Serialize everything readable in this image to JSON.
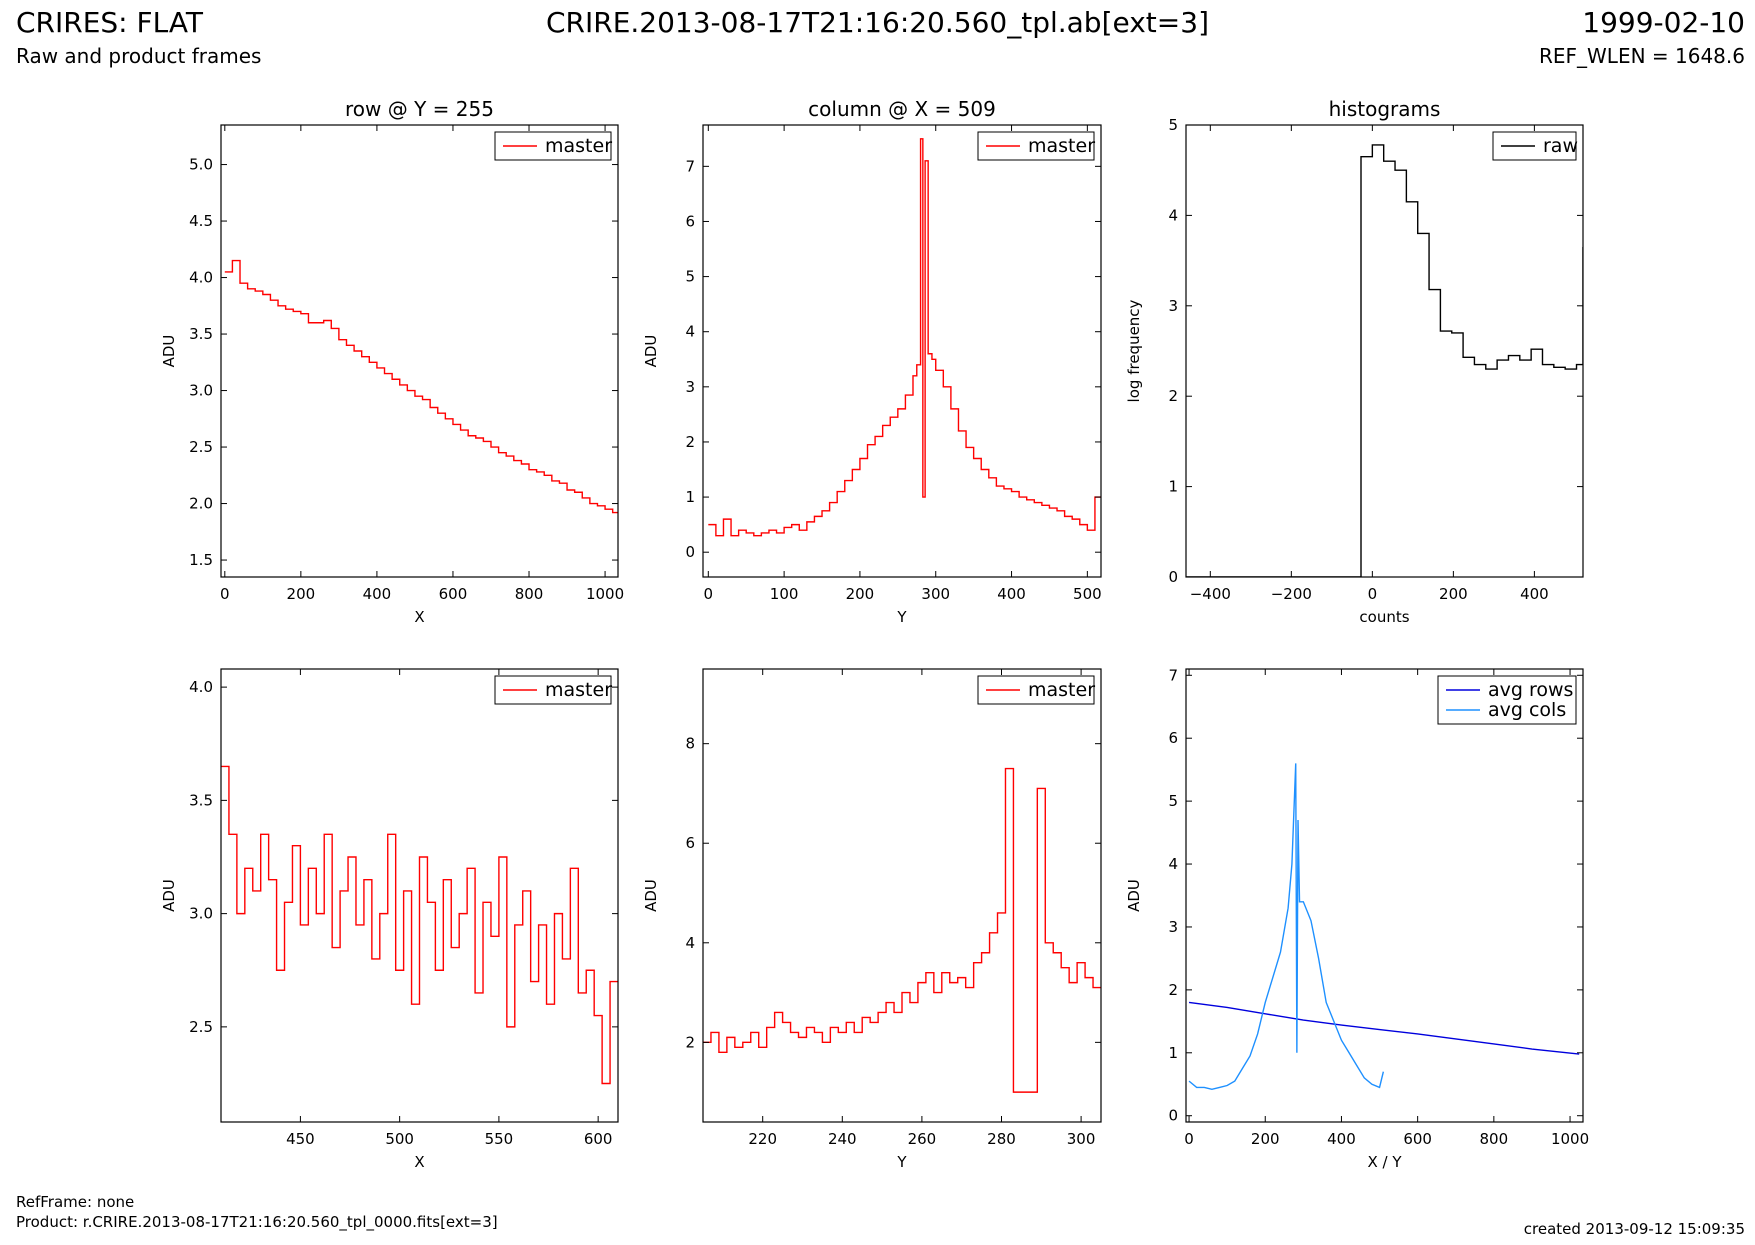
{
  "header": {
    "instrument": "CRIRES: FLAT",
    "subtitle": "Raw and product frames",
    "filename": "CRIRE.2013-08-17T21:16:20.560_tpl.ab[ext=3]",
    "date": "1999-02-10",
    "ref_wlen": "REF_WLEN = 1648.6"
  },
  "footer": {
    "refframe": "RefFrame: none",
    "product": "Product: r.CRIRE.2013-08-17T21:16:20.560_tpl_0000.fits[ext=3]",
    "created": "created 2013-09-12 15:09:35"
  },
  "colors": {
    "master": "#ff0000",
    "raw": "#000000",
    "avg_rows": "#0000dd",
    "avg_cols": "#1e90ff"
  },
  "chart_data": [
    {
      "type": "line",
      "title": "row @ Y = 255",
      "xlabel": "X",
      "ylabel": "ADU",
      "xlim": [
        -10,
        1034
      ],
      "ylim": [
        1.35,
        5.35
      ],
      "xticks": [
        0,
        200,
        400,
        600,
        800,
        1000
      ],
      "yticks": [
        1.5,
        2.0,
        2.5,
        3.0,
        3.5,
        4.0,
        4.5,
        5.0
      ],
      "ytick_labels": [
        "1.5",
        "2.0",
        "2.5",
        "3.0",
        "3.5",
        "4.0",
        "4.5",
        "5.0"
      ],
      "legend": "top-right",
      "series": [
        {
          "name": "master",
          "style": "steps",
          "color": "#ff0000",
          "x": [
            0,
            20,
            40,
            60,
            80,
            100,
            120,
            140,
            160,
            180,
            200,
            220,
            240,
            260,
            280,
            300,
            320,
            340,
            360,
            380,
            400,
            420,
            440,
            460,
            480,
            500,
            520,
            540,
            560,
            580,
            600,
            620,
            640,
            660,
            680,
            700,
            720,
            740,
            760,
            780,
            800,
            820,
            840,
            860,
            880,
            900,
            920,
            940,
            960,
            980,
            1000,
            1020
          ],
          "values": [
            4.05,
            4.15,
            3.95,
            3.9,
            3.88,
            3.85,
            3.8,
            3.75,
            3.72,
            3.7,
            3.68,
            3.6,
            3.6,
            3.62,
            3.55,
            3.45,
            3.4,
            3.35,
            3.3,
            3.25,
            3.2,
            3.15,
            3.1,
            3.05,
            3.0,
            2.95,
            2.92,
            2.85,
            2.8,
            2.75,
            2.7,
            2.65,
            2.6,
            2.58,
            2.55,
            2.5,
            2.45,
            2.42,
            2.38,
            2.35,
            2.3,
            2.28,
            2.25,
            2.2,
            2.18,
            2.12,
            2.1,
            2.05,
            2.0,
            1.98,
            1.95,
            1.92
          ]
        }
      ]
    },
    {
      "type": "line",
      "title": "column @ X = 509",
      "xlabel": "Y",
      "ylabel": "ADU",
      "xlim": [
        -7,
        518
      ],
      "ylim": [
        -0.45,
        7.75
      ],
      "xticks": [
        0,
        100,
        200,
        300,
        400,
        500
      ],
      "yticks": [
        0,
        1,
        2,
        3,
        4,
        5,
        6,
        7
      ],
      "ytick_labels": [
        "0",
        "1",
        "2",
        "3",
        "4",
        "5",
        "6",
        "7"
      ],
      "legend": "top-right",
      "series": [
        {
          "name": "master",
          "style": "steps",
          "color": "#ff0000",
          "x": [
            0,
            10,
            20,
            30,
            40,
            50,
            60,
            70,
            80,
            90,
            100,
            110,
            120,
            130,
            140,
            150,
            160,
            170,
            180,
            190,
            200,
            210,
            220,
            230,
            240,
            250,
            260,
            270,
            275,
            280,
            283,
            286,
            290,
            295,
            300,
            310,
            320,
            330,
            340,
            350,
            360,
            370,
            380,
            390,
            400,
            410,
            420,
            430,
            440,
            450,
            460,
            470,
            480,
            490,
            500,
            510
          ],
          "values": [
            0.5,
            0.3,
            0.6,
            0.3,
            0.4,
            0.35,
            0.3,
            0.35,
            0.4,
            0.35,
            0.45,
            0.5,
            0.4,
            0.55,
            0.65,
            0.75,
            0.9,
            1.1,
            1.3,
            1.5,
            1.7,
            1.95,
            2.1,
            2.3,
            2.45,
            2.6,
            2.85,
            3.2,
            3.4,
            7.5,
            1.0,
            7.1,
            3.6,
            3.5,
            3.3,
            3.0,
            2.6,
            2.2,
            1.9,
            1.7,
            1.5,
            1.35,
            1.2,
            1.15,
            1.1,
            1.0,
            0.95,
            0.9,
            0.85,
            0.8,
            0.75,
            0.65,
            0.6,
            0.5,
            0.4,
            1.0
          ]
        }
      ]
    },
    {
      "type": "line",
      "title": "histograms",
      "xlabel": "counts",
      "ylabel": "log frequency",
      "xlim": [
        -460,
        520
      ],
      "ylim": [
        0,
        5
      ],
      "xticks": [
        -400,
        -200,
        0,
        200,
        400
      ],
      "xtick_labels": [
        "−400",
        "−200",
        "0",
        "200",
        "400"
      ],
      "yticks": [
        0,
        1,
        2,
        3,
        4,
        5
      ],
      "ytick_labels": [
        "0",
        "1",
        "2",
        "3",
        "4",
        "5"
      ],
      "legend": "top-right",
      "series": [
        {
          "name": "raw",
          "style": "steps",
          "color": "#000000",
          "x": [
            -460,
            -28,
            0,
            28,
            56,
            84,
            112,
            140,
            168,
            196,
            224,
            252,
            280,
            308,
            336,
            364,
            392,
            420,
            448,
            476,
            504,
            520
          ],
          "values": [
            0,
            4.65,
            4.78,
            4.6,
            4.5,
            4.15,
            3.8,
            3.18,
            2.72,
            2.7,
            2.43,
            2.35,
            2.3,
            2.4,
            2.45,
            2.4,
            2.52,
            2.35,
            2.32,
            2.3,
            2.35,
            3.65
          ]
        }
      ]
    },
    {
      "type": "line",
      "title": "",
      "xlabel": "X",
      "ylabel": "ADU",
      "xlim": [
        410,
        610
      ],
      "ylim": [
        2.08,
        4.08
      ],
      "xticks": [
        450,
        500,
        550,
        600
      ],
      "yticks": [
        2.5,
        3.0,
        3.5,
        4.0
      ],
      "ytick_labels": [
        "2.5",
        "3.0",
        "3.5",
        "4.0"
      ],
      "legend": "top-right",
      "series": [
        {
          "name": "master",
          "style": "steps",
          "color": "#ff0000",
          "x": [
            410,
            414,
            418,
            422,
            426,
            430,
            434,
            438,
            442,
            446,
            450,
            454,
            458,
            462,
            466,
            470,
            474,
            478,
            482,
            486,
            490,
            494,
            498,
            502,
            506,
            510,
            514,
            518,
            522,
            526,
            530,
            534,
            538,
            542,
            546,
            550,
            554,
            558,
            562,
            566,
            570,
            574,
            578,
            582,
            586,
            590,
            594,
            598,
            602,
            606
          ],
          "values": [
            3.65,
            3.35,
            3.0,
            3.2,
            3.1,
            3.35,
            3.15,
            2.75,
            3.05,
            3.3,
            2.95,
            3.2,
            3.0,
            3.35,
            2.85,
            3.1,
            3.25,
            2.95,
            3.15,
            2.8,
            3.0,
            3.35,
            2.75,
            3.1,
            2.6,
            3.25,
            3.05,
            2.75,
            3.15,
            2.85,
            3.0,
            3.2,
            2.65,
            3.05,
            2.9,
            3.25,
            2.5,
            2.95,
            3.1,
            2.7,
            2.95,
            2.6,
            3.0,
            2.8,
            3.2,
            2.65,
            2.75,
            2.55,
            2.25,
            2.7
          ]
        }
      ]
    },
    {
      "type": "line",
      "title": "",
      "xlabel": "Y",
      "ylabel": "ADU",
      "xlim": [
        205,
        305
      ],
      "ylim": [
        0.4,
        9.5
      ],
      "xticks": [
        220,
        240,
        260,
        280,
        300
      ],
      "yticks": [
        2,
        4,
        6,
        8
      ],
      "ytick_labels": [
        "2",
        "4",
        "6",
        "8"
      ],
      "legend": "top-right",
      "series": [
        {
          "name": "master",
          "style": "steps",
          "color": "#ff0000",
          "x": [
            205,
            207,
            209,
            211,
            213,
            215,
            217,
            219,
            221,
            223,
            225,
            227,
            229,
            231,
            233,
            235,
            237,
            239,
            241,
            243,
            245,
            247,
            249,
            251,
            253,
            255,
            257,
            259,
            261,
            263,
            265,
            267,
            269,
            271,
            273,
            275,
            277,
            279,
            281,
            283,
            285,
            287,
            289,
            291,
            293,
            295,
            297,
            299,
            301,
            303
          ],
          "values": [
            2.0,
            2.2,
            1.8,
            2.1,
            1.9,
            2.0,
            2.2,
            1.9,
            2.3,
            2.6,
            2.4,
            2.2,
            2.1,
            2.3,
            2.2,
            2.0,
            2.3,
            2.2,
            2.4,
            2.2,
            2.5,
            2.4,
            2.6,
            2.8,
            2.6,
            3.0,
            2.8,
            3.2,
            3.4,
            3.0,
            3.4,
            3.2,
            3.3,
            3.1,
            3.6,
            3.8,
            4.2,
            4.6,
            7.5,
            1.0,
            1.0,
            1.0,
            7.1,
            4.0,
            3.8,
            3.5,
            3.2,
            3.6,
            3.3,
            3.1
          ]
        }
      ]
    },
    {
      "type": "line",
      "title": "",
      "xlabel": "X / Y",
      "ylabel": "ADU",
      "xlim": [
        -8,
        1034
      ],
      "ylim": [
        -0.1,
        7.1
      ],
      "xticks": [
        0,
        200,
        400,
        600,
        800,
        1000
      ],
      "yticks": [
        0,
        1,
        2,
        3,
        4,
        5,
        6,
        7
      ],
      "ytick_labels": [
        "0",
        "1",
        "2",
        "3",
        "4",
        "5",
        "6",
        "7"
      ],
      "legend": "top-right",
      "series": [
        {
          "name": "avg rows",
          "style": "line",
          "color": "#0000dd",
          "x": [
            0,
            100,
            200,
            300,
            400,
            500,
            600,
            700,
            800,
            900,
            1024
          ],
          "values": [
            1.8,
            1.72,
            1.62,
            1.52,
            1.44,
            1.37,
            1.3,
            1.22,
            1.14,
            1.06,
            0.98
          ]
        },
        {
          "name": "avg cols",
          "style": "line",
          "color": "#1e90ff",
          "x": [
            0,
            20,
            40,
            60,
            80,
            100,
            120,
            140,
            160,
            180,
            200,
            220,
            240,
            260,
            270,
            280,
            283,
            286,
            290,
            300,
            320,
            340,
            360,
            380,
            400,
            420,
            440,
            460,
            480,
            500,
            510
          ],
          "values": [
            0.55,
            0.45,
            0.45,
            0.42,
            0.45,
            0.48,
            0.55,
            0.75,
            0.95,
            1.3,
            1.8,
            2.2,
            2.6,
            3.3,
            4.0,
            5.6,
            1.0,
            4.7,
            3.4,
            3.4,
            3.1,
            2.5,
            1.8,
            1.5,
            1.2,
            1.0,
            0.8,
            0.6,
            0.5,
            0.45,
            0.7
          ]
        }
      ]
    }
  ]
}
